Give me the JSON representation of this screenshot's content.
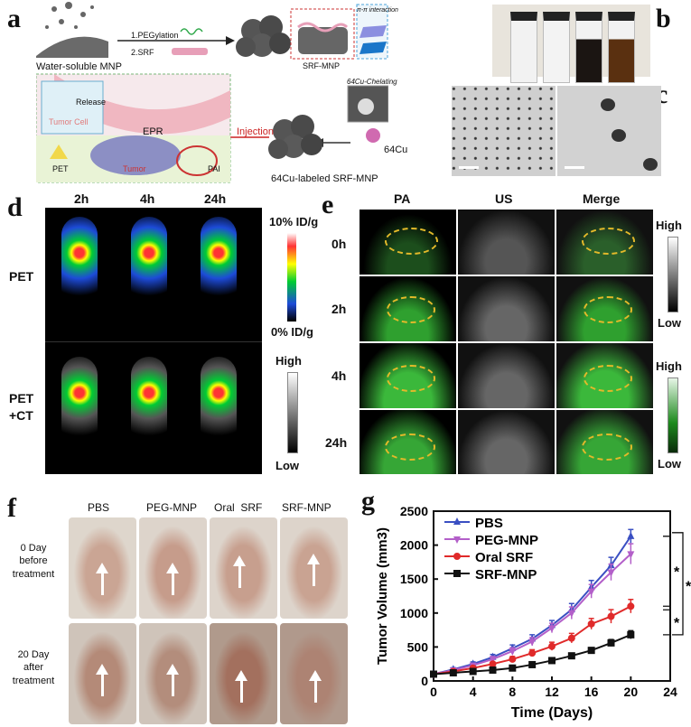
{
  "panels": {
    "a": {
      "label": "a",
      "steps": [
        "1.PEGylation",
        "2.SRF"
      ],
      "water_soluble": "Water-soluble MNP",
      "srf_mnp": "SRF-MNP",
      "pi_interaction": "π-π interaction",
      "cu_chelating": "64Cu-Chelating",
      "cu": "64Cu",
      "labeled": "64Cu-labeled SRF-MNP",
      "injection": "Injection",
      "epr": "EPR",
      "tumor_cell": "Tumor Cell",
      "release": "Release",
      "pet": "PET",
      "tumor": "Tumor",
      "pai": "PAI"
    },
    "b": {
      "label": "b"
    },
    "c": {
      "label": "c"
    },
    "d": {
      "label": "d",
      "times": [
        "2h",
        "4h",
        "24h"
      ],
      "rows": [
        "PET",
        "PET\n+CT"
      ],
      "scale_top": "10% ID/g",
      "scale_bottom": "0% ID/g",
      "gray_high": "High",
      "gray_low": "Low"
    },
    "e": {
      "label": "e",
      "cols": [
        "PA",
        "US",
        "Merge"
      ],
      "rows": [
        "0h",
        "2h",
        "4h",
        "24h"
      ],
      "high1": "High",
      "low1": "Low",
      "high2": "High",
      "low2": "Low"
    },
    "f": {
      "label": "f",
      "cols": [
        "PBS",
        "PEG-MNP",
        "Oral  SRF",
        "SRF-MNP"
      ],
      "rows": [
        "0 Day\nbefore\ntreatment",
        "20 Day\nafter\ntreatment"
      ]
    },
    "g": {
      "label": "g"
    }
  },
  "chart_data": {
    "type": "line",
    "xlabel": "Time (Days)",
    "ylabel": "Tumor Volume (mm3)",
    "xlim": [
      0,
      24
    ],
    "ylim": [
      0,
      2500
    ],
    "xticks": [
      "0",
      "4",
      "8",
      "12",
      "16",
      "20",
      "24"
    ],
    "yticks": [
      "0",
      "500",
      "1000",
      "1500",
      "2000",
      "2500"
    ],
    "x": [
      0,
      2,
      4,
      6,
      8,
      10,
      12,
      14,
      16,
      18,
      20
    ],
    "legend_position": "top-left",
    "grid": false,
    "series": [
      {
        "name": "PBS",
        "color": "#3a4fc2",
        "marker": "triangle-up",
        "values": [
          100,
          170,
          250,
          350,
          480,
          620,
          820,
          1050,
          1380,
          1700,
          2130
        ],
        "errors": [
          20,
          25,
          30,
          40,
          50,
          60,
          70,
          90,
          100,
          120,
          100
        ]
      },
      {
        "name": "PEG-MNP",
        "color": "#b35fc9",
        "marker": "triangle-down",
        "values": [
          100,
          160,
          230,
          320,
          440,
          580,
          780,
          1000,
          1320,
          1600,
          1870
        ],
        "errors": [
          20,
          25,
          30,
          40,
          50,
          60,
          70,
          90,
          100,
          120,
          150
        ]
      },
      {
        "name": "Oral SRF",
        "color": "#e02a2a",
        "marker": "circle",
        "values": [
          100,
          140,
          190,
          250,
          320,
          410,
          510,
          630,
          840,
          950,
          1100
        ],
        "errors": [
          15,
          20,
          25,
          30,
          40,
          50,
          60,
          70,
          80,
          100,
          100
        ]
      },
      {
        "name": "SRF-MNP",
        "color": "#111111",
        "marker": "square",
        "values": [
          100,
          120,
          140,
          160,
          190,
          240,
          300,
          370,
          450,
          560,
          680
        ],
        "errors": [
          10,
          15,
          15,
          20,
          20,
          25,
          30,
          35,
          40,
          50,
          60
        ]
      }
    ],
    "significance": [
      "*",
      "*",
      "*"
    ]
  }
}
